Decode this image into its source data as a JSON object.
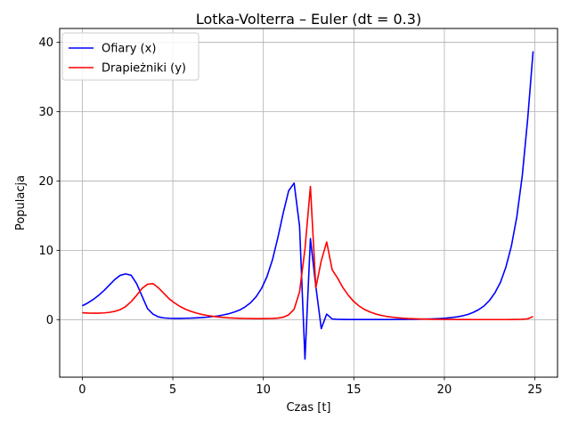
{
  "chart_data": {
    "type": "line",
    "title": "Lotka-Volterra – Euler (dt = 0.3)",
    "xlabel": "Czas [t]",
    "ylabel": "Populacja",
    "xlim": [
      -1.25,
      26.25
    ],
    "ylim": [
      -8.3,
      42.0
    ],
    "xticks": [
      0,
      5,
      10,
      15,
      20,
      25
    ],
    "yticks": [
      0,
      10,
      20,
      30,
      40
    ],
    "grid": true,
    "legend_position": "top-left",
    "x": [
      0.0,
      0.3,
      0.6,
      0.9,
      1.2,
      1.5,
      1.8,
      2.1,
      2.4,
      2.7,
      3.0,
      3.3,
      3.6,
      3.9,
      4.2,
      4.5,
      4.8,
      5.1,
      5.4,
      5.7,
      6.0,
      6.3,
      6.6,
      6.9,
      7.2,
      7.5,
      7.8,
      8.1,
      8.4,
      8.7,
      9.0,
      9.3,
      9.6,
      9.9,
      10.2,
      10.5,
      10.8,
      11.1,
      11.4,
      11.7,
      12.0,
      12.3,
      12.6,
      12.9,
      13.2,
      13.5,
      13.8,
      14.1,
      14.4,
      14.7,
      15.0,
      15.3,
      15.6,
      15.9,
      16.2,
      16.5,
      16.8,
      17.1,
      17.4,
      17.7,
      18.0,
      18.3,
      18.6,
      18.9,
      19.2,
      19.5,
      19.8,
      20.1,
      20.4,
      20.7,
      21.0,
      21.3,
      21.6,
      21.9,
      22.2,
      22.5,
      22.8,
      23.1,
      23.4,
      23.7,
      24.0,
      24.3,
      24.6,
      24.9
    ],
    "series": [
      {
        "name": "Ofiary (x)",
        "color": "#0000ff",
        "values": [
          2.0,
          2.4,
          2.9,
          3.5,
          4.2,
          5.0,
          5.8,
          6.4,
          6.6,
          6.4,
          5.2,
          3.4,
          1.6,
          0.8,
          0.4,
          0.25,
          0.2,
          0.18,
          0.18,
          0.2,
          0.22,
          0.26,
          0.3,
          0.36,
          0.44,
          0.54,
          0.68,
          0.86,
          1.1,
          1.4,
          1.85,
          2.45,
          3.3,
          4.5,
          6.2,
          8.6,
          11.8,
          15.4,
          18.6,
          19.7,
          13.5,
          -5.7,
          11.7,
          4.8,
          -1.3,
          0.8,
          0.1,
          0.04,
          0.03,
          0.02,
          0.02,
          0.02,
          0.02,
          0.02,
          0.02,
          0.02,
          0.02,
          0.02,
          0.03,
          0.03,
          0.04,
          0.05,
          0.06,
          0.08,
          0.1,
          0.13,
          0.17,
          0.22,
          0.3,
          0.4,
          0.55,
          0.75,
          1.05,
          1.45,
          2.0,
          2.8,
          3.9,
          5.4,
          7.6,
          10.6,
          14.8,
          20.7,
          28.9,
          38.7
        ]
      },
      {
        "name": "Drapieżniki (y)",
        "color": "#ff0000",
        "values": [
          1.0,
          0.95,
          0.93,
          0.93,
          0.97,
          1.05,
          1.2,
          1.45,
          1.9,
          2.6,
          3.5,
          4.5,
          5.1,
          5.2,
          4.6,
          3.8,
          3.0,
          2.4,
          1.9,
          1.5,
          1.2,
          0.95,
          0.75,
          0.6,
          0.48,
          0.39,
          0.32,
          0.26,
          0.22,
          0.19,
          0.17,
          0.16,
          0.15,
          0.15,
          0.16,
          0.18,
          0.22,
          0.35,
          0.7,
          1.5,
          4.0,
          10.2,
          19.2,
          4.6,
          8.5,
          11.2,
          7.2,
          6.0,
          4.6,
          3.5,
          2.6,
          1.95,
          1.45,
          1.1,
          0.82,
          0.62,
          0.47,
          0.36,
          0.28,
          0.21,
          0.16,
          0.13,
          0.1,
          0.08,
          0.06,
          0.05,
          0.04,
          0.03,
          0.03,
          0.02,
          0.02,
          0.02,
          0.01,
          0.01,
          0.01,
          0.01,
          0.01,
          0.01,
          0.01,
          0.02,
          0.03,
          0.05,
          0.12,
          0.45
        ]
      }
    ]
  }
}
